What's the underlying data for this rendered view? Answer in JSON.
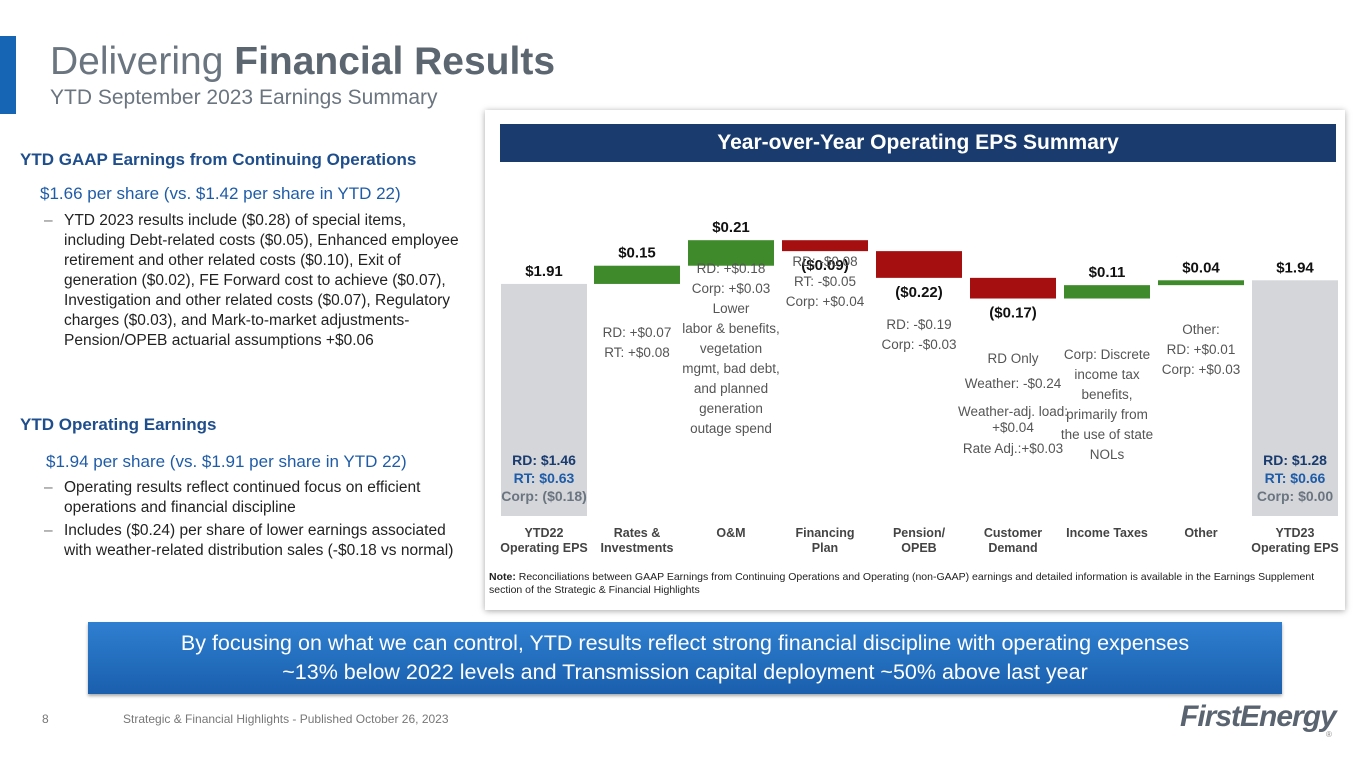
{
  "header": {
    "title_regular": "Delivering ",
    "title_bold": "Financial Results",
    "subtitle": "YTD September 2023 Earnings Summary"
  },
  "left": {
    "gaap": {
      "heading": "YTD GAAP Earnings from Continuing Operations",
      "lead": "$1.66 per share (vs. $1.42 per share in YTD 22)",
      "bullets": [
        "YTD 2023 results include ($0.28) of special items, including Debt-related costs ($0.05), Enhanced employee retirement and other related costs ($0.10), Exit of generation ($0.02), FE Forward cost to achieve ($0.07), Investigation and other related costs ($0.07), Regulatory charges ($0.03), and Mark-to-market adjustments-Pension/OPEB actuarial assumptions +$0.06"
      ]
    },
    "operating": {
      "heading": "YTD Operating Earnings",
      "lead": "$1.94 per share (vs. $1.91 per share in YTD 22)",
      "bullets": [
        "Operating results reflect continued focus on efficient operations and financial discipline",
        "Includes ($0.24) per share of lower earnings associated with weather-related distribution sales (-$0.18 vs normal)"
      ]
    },
    "dash": "–"
  },
  "chart_data": {
    "type": "waterfall",
    "title": "Year-over-Year Operating EPS Summary",
    "categories": [
      "YTD22 Operating EPS",
      "Rates & Investments",
      "O&M",
      "Financing Plan",
      "Pension/ OPEB",
      "Customer Demand",
      "Income Taxes",
      "Other",
      "YTD23 Operating EPS"
    ],
    "values": [
      1.91,
      0.15,
      0.21,
      -0.09,
      -0.22,
      -0.17,
      0.11,
      0.04,
      1.94
    ],
    "value_labels": [
      "$1.91",
      "$0.15",
      "$0.21",
      "($0.09)",
      "($0.22)",
      "($0.17)",
      "$0.11",
      "$0.04",
      "$1.94"
    ],
    "bar_kinds": [
      "total",
      "increase",
      "increase",
      "decrease",
      "decrease",
      "decrease",
      "increase",
      "increase",
      "total"
    ],
    "colors": {
      "total": "#d4d6da",
      "increase": "#3f8a2a",
      "decrease": "#a50f0f"
    },
    "annotations": [
      [],
      [
        "RD: +$0.07",
        "RT: +$0.08"
      ],
      [
        "RD: +$0.18",
        "Corp: +$0.03",
        "Lower",
        "labor & benefits,",
        "vegetation",
        "mgmt, bad debt,",
        "and planned",
        "generation",
        "outage spend"
      ],
      [
        "RD: -$0.08",
        "RT: -$0.05",
        "Corp: +$0.04"
      ],
      [
        "RD: -$0.19",
        "Corp: -$0.03"
      ],
      [
        "RD Only",
        "Weather: -$0.24",
        "Weather-adj. load:",
        "+$0.04",
        "Rate Adj.:+$0.03"
      ],
      [
        "Corp: Discrete",
        "income tax",
        "benefits,",
        "primarily from",
        "the use of state",
        "NOLs"
      ],
      [
        "Other:",
        "RD: +$0.01",
        "Corp: +$0.03"
      ],
      []
    ],
    "total_breakdowns": {
      "start": [
        "RD: $1.46",
        "RT: $0.63",
        "Corp: ($0.18)"
      ],
      "end": [
        "RD: $1.28",
        "RT: $0.66",
        "Corp: $0.00"
      ]
    },
    "breakdown_colors": [
      "#1a3b6e",
      "#1f5ca8",
      "#6b7580"
    ]
  },
  "note": {
    "label": "Note:",
    "text": " Reconciliations between GAAP Earnings from Continuing Operations and Operating (non-GAAP) earnings and detailed information is available in the Earnings Supplement section of the Strategic & Financial Highlights"
  },
  "banner": {
    "line1": "By focusing on what we can control, YTD results reflect strong financial discipline with operating expenses",
    "line2": "~13% below 2022 levels and Transmission capital deployment ~50% above last year"
  },
  "footer": {
    "page": "8",
    "text": "Strategic & Financial Highlights - Published October 26, 2023",
    "logo": "FirstEnergy",
    "logo_mark": "®"
  }
}
